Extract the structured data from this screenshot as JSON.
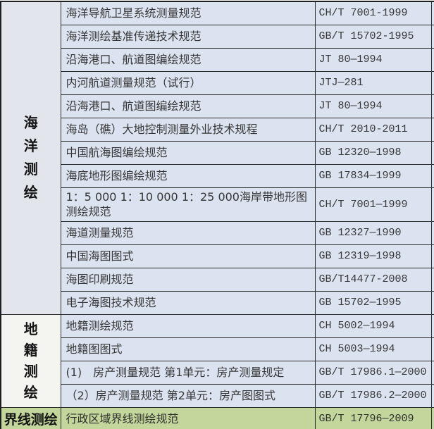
{
  "colors": {
    "row_fill_blue": "#dce3f0",
    "group_marine_fill": "#e2e5ec",
    "group_cadastral_fill": "#f4f4f1",
    "highlight_green": "#c3d69b",
    "border": "#2c2c2c",
    "text": "#363636"
  },
  "table": {
    "groups": [
      {
        "label": "海洋测绘",
        "rows": [
          {
            "name": "海洋导航卫星系统测量规范",
            "code": "CH/T 7001-1999"
          },
          {
            "name": "海洋测绘基准传递技术规范",
            "code": "GB/T 15702-1995"
          },
          {
            "name": "沿海港口、航道图编绘规范",
            "code": "JT 80—1994"
          },
          {
            "name": "内河航道测量规范（试行）",
            "code": "JTJ—281"
          },
          {
            "name": "沿海港口、航道图编绘规范",
            "code": "JT 80—1994"
          },
          {
            "name": "海岛（礁）大地控制测量外业技术规程",
            "code": "CH/T 2010-2011"
          },
          {
            "name": "中国航海图编绘规范",
            "code": "GB 12320—1998"
          },
          {
            "name": "海底地形图编绘规范",
            "code": "GB 17834—1999"
          },
          {
            "name": "1：5 000 1：10 000 1：25 000海岸带地形图测绘规范",
            "code": "CH/T 7001—1999"
          },
          {
            "name": "海道测量规范",
            "code": "GB 12327—1990"
          },
          {
            "name": "中国海图图式",
            "code": "GB 12319—1998"
          },
          {
            "name": "海图印刷规范",
            "code": "GB/T14477-2008"
          },
          {
            "name": "电子海图技术规范",
            "code": "GB 15702—1995"
          }
        ]
      },
      {
        "label": "地籍测绘",
        "rows": [
          {
            "name": "地籍测绘规范",
            "code": "CH 5002—1994"
          },
          {
            "name": "地籍图图式",
            "code": "CH 5003—1994"
          },
          {
            "name": "(1)　房产测量规范 第1单元：房产测量规定",
            "code": "GB/T 17986.1—2000"
          },
          {
            "name": "（2）房产测量规范 第2单元：房产图图式",
            "code": "GB/T 17986.2—2000"
          }
        ]
      },
      {
        "label": "界线测绘",
        "rows": [
          {
            "name": "行政区域界线测绘规范",
            "code": "GB/T 17796—2009"
          }
        ]
      }
    ]
  }
}
